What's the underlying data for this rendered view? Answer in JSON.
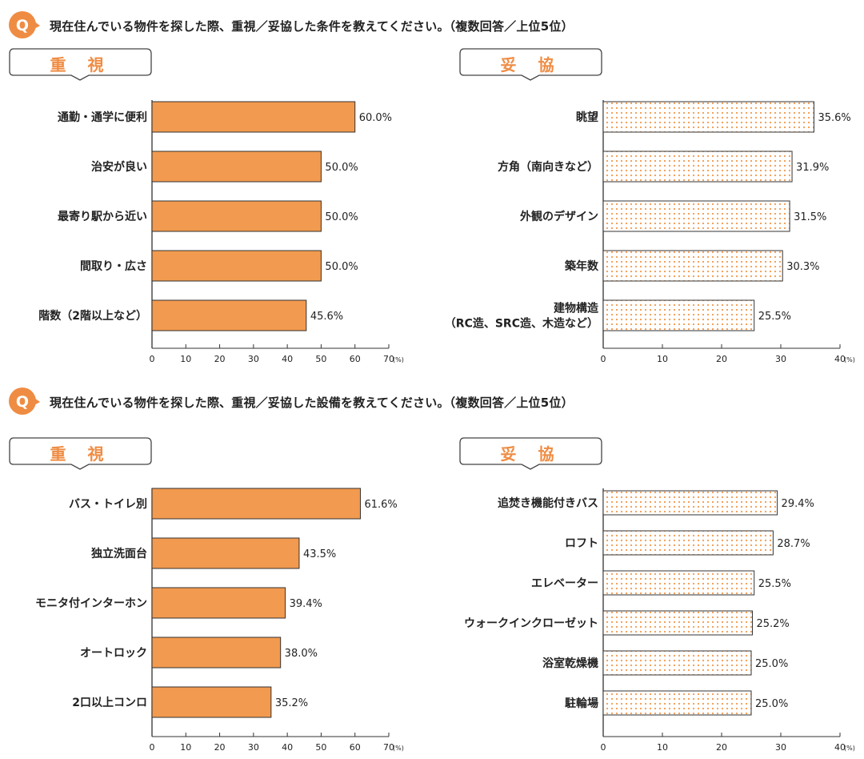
{
  "colors": {
    "accent": "#ef8c43",
    "bar_fill": "#f29a4f",
    "dot": "#f29a4f",
    "text": "#222222"
  },
  "sections": [
    {
      "question": "現在住んでいる物件を探した際、重視／妥協した条件を教えてください。（複数回答／上位5位）",
      "q_label": "Q",
      "left_tag": "重 視",
      "right_tag": "妥 協"
    },
    {
      "question": "現在住んでいる物件を探した際、重視／妥協した設備を教えてください。（複数回答／上位5位）",
      "q_label": "Q",
      "left_tag": "重 視",
      "right_tag": "妥 協"
    }
  ],
  "chart_data": [
    {
      "type": "bar",
      "orientation": "horizontal",
      "style": "solid",
      "unit": "(%)",
      "xlim": [
        0,
        70
      ],
      "ticks": [
        "0",
        "10",
        "20",
        "30",
        "40",
        "50",
        "60",
        "70"
      ],
      "categories": [
        "通勤・通学に便利",
        "治安が良い",
        "最寄り駅から近い",
        "間取り・広さ",
        "階数（2階以上など）"
      ],
      "values": [
        60.0,
        50.0,
        50.0,
        50.0,
        45.6
      ],
      "labels": [
        "60.0%",
        "50.0%",
        "50.0%",
        "50.0%",
        "45.6%"
      ]
    },
    {
      "type": "bar",
      "orientation": "horizontal",
      "style": "dotted",
      "unit": "(%)",
      "xlim": [
        0,
        40
      ],
      "ticks": [
        "0",
        "10",
        "20",
        "30",
        "40"
      ],
      "categories": [
        "眺望",
        "方角（南向きなど）",
        "外観のデザイン",
        "築年数",
        "建物構造\n（RC造、SRC造、木造など）"
      ],
      "values": [
        35.6,
        31.9,
        31.5,
        30.3,
        25.5
      ],
      "labels": [
        "35.6%",
        "31.9%",
        "31.5%",
        "30.3%",
        "25.5%"
      ]
    },
    {
      "type": "bar",
      "orientation": "horizontal",
      "style": "solid",
      "unit": "(%)",
      "xlim": [
        0,
        70
      ],
      "ticks": [
        "0",
        "10",
        "20",
        "30",
        "40",
        "50",
        "60",
        "70"
      ],
      "categories": [
        "バス・トイレ別",
        "独立洗面台",
        "モニタ付インターホン",
        "オートロック",
        "2口以上コンロ"
      ],
      "values": [
        61.6,
        43.5,
        39.4,
        38.0,
        35.2
      ],
      "labels": [
        "61.6%",
        "43.5%",
        "39.4%",
        "38.0%",
        "35.2%"
      ]
    },
    {
      "type": "bar",
      "orientation": "horizontal",
      "style": "dotted",
      "unit": "(%)",
      "xlim": [
        0,
        40
      ],
      "ticks": [
        "0",
        "10",
        "20",
        "30",
        "40"
      ],
      "categories": [
        "追焚き機能付きバス",
        "ロフト",
        "エレベーター",
        "ウォークインクローゼット",
        "浴室乾燥機",
        "駐輪場"
      ],
      "values": [
        29.4,
        28.7,
        25.5,
        25.2,
        25.0,
        25.0
      ],
      "labels": [
        "29.4%",
        "28.7%",
        "25.5%",
        "25.2%",
        "25.0%",
        "25.0%"
      ]
    }
  ]
}
